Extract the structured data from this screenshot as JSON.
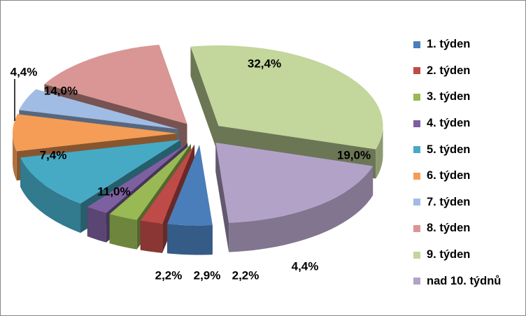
{
  "chart_data": {
    "type": "pie",
    "categories": [
      "1. týden",
      "2. týden",
      "3. týden",
      "4. týden",
      "5. týden",
      "6. týden",
      "7. týden",
      "8. týden",
      "9. týden",
      "nad 10. týdnů"
    ],
    "values": [
      4.4,
      2.2,
      2.9,
      2.2,
      11.0,
      7.4,
      4.4,
      14.0,
      32.4,
      19.0
    ],
    "data_labels": [
      "4,4%",
      "2,2%",
      "2,9%",
      "2,2%",
      "11,0%",
      "7,4%",
      "4,4%",
      "14,0%",
      "32,4%",
      "19,0%"
    ],
    "colors": [
      "#4a7ebb",
      "#be4b48",
      "#98b954",
      "#7d60a0",
      "#46aac5",
      "#f59d56",
      "#a0bce4",
      "#d99694",
      "#c3d69b",
      "#b3a2c7"
    ],
    "style": "3d-exploded",
    "legend_position": "right",
    "title": ""
  }
}
